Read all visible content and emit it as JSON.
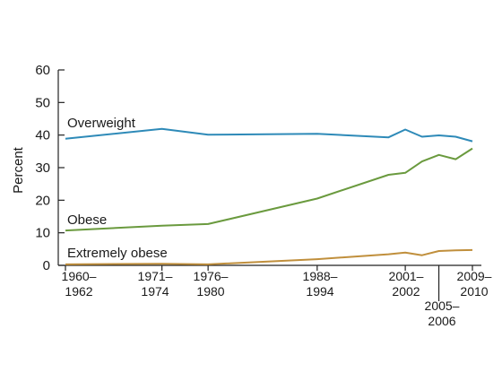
{
  "chart_data": {
    "type": "line",
    "ylabel": "Percent",
    "ylim": [
      0,
      60
    ],
    "yticks": [
      "0",
      "10",
      "20",
      "30",
      "40",
      "50",
      "60"
    ],
    "x_tick_labels": [
      {
        "line1": "1960–",
        "line2": "1962"
      },
      {
        "line1": "1971–",
        "line2": "1974"
      },
      {
        "line1": "1976–",
        "line2": "1980"
      },
      {
        "line1": "1988–",
        "line2": "1994"
      },
      {
        "line1": "2001–",
        "line2": "2002"
      },
      {
        "line1": "2005–",
        "line2": "2006"
      },
      {
        "line1": "2009–",
        "line2": "2010"
      }
    ],
    "x": [
      1961,
      1972.5,
      1978,
      1991,
      1999.5,
      2001.5,
      2003.5,
      2005.5,
      2007.5,
      2009.5
    ],
    "series": [
      {
        "name": "Overweight",
        "color": "#2e8ab8",
        "values": [
          38.9,
          41.9,
          40.1,
          40.4,
          39.3,
          41.7,
          39.5,
          39.9,
          39.5,
          38.1
        ]
      },
      {
        "name": "Obese",
        "color": "#6a9a3e",
        "values": [
          10.7,
          12.2,
          12.7,
          20.5,
          27.8,
          28.4,
          31.9,
          33.9,
          32.6,
          35.9
        ]
      },
      {
        "name": "Extremely obese",
        "color": "#c08f3c",
        "values": [
          0.3,
          0.5,
          0.3,
          1.9,
          3.4,
          3.9,
          3.1,
          4.4,
          4.6,
          4.7
        ]
      }
    ],
    "grid": false
  }
}
